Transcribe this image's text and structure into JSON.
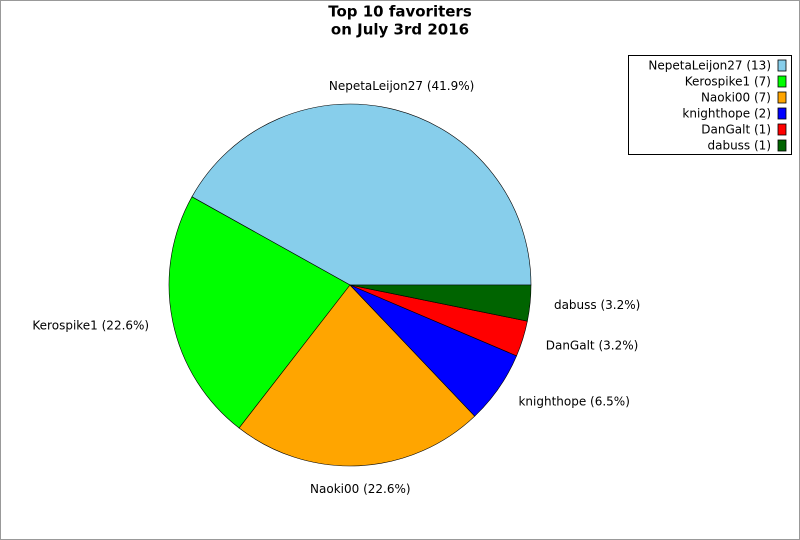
{
  "chart_data": {
    "type": "pie",
    "title": "Top 10 favoriters",
    "subtitle": "on July 3rd 2016",
    "categories": [
      "NepetaLeijon27 (13)",
      "Kerospike1 (7)",
      "Naoki00 (7)",
      "knighthope (2)",
      "DanGalt (1)",
      "dabuss (1)"
    ],
    "values": [
      41.9,
      22.6,
      22.6,
      6.5,
      3.2,
      3.2
    ],
    "value_labels": [
      "NepetaLeijon27 (41.9%)",
      "Kerospike1 (22.6%)",
      "Naoki00 (22.6%)",
      "knighthope (6.5%)",
      "DanGalt (3.2%)",
      "dabuss (3.2%)"
    ],
    "colors": [
      "#87ceeb",
      "#00ff00",
      "#ffa500",
      "#0000ff",
      "#ff0000",
      "#006400"
    ],
    "legend": "upper right"
  }
}
